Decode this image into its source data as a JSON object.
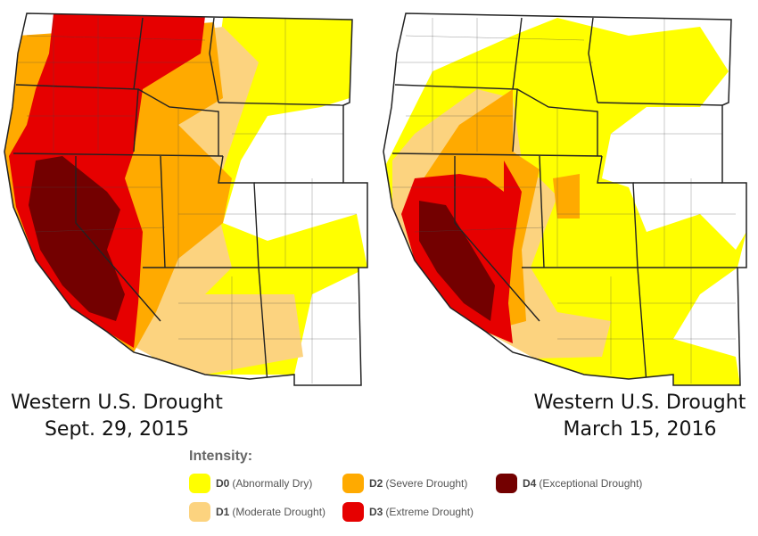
{
  "maps": [
    {
      "caption_line1": "Western U.S. Drought",
      "caption_line2": "Sept. 29, 2015"
    },
    {
      "caption_line1": "Western U.S. Drought",
      "caption_line2": "March 15, 2016"
    }
  ],
  "legend": {
    "title": "Intensity:",
    "items": [
      {
        "code": "D0",
        "label": "(Abnormally Dry)",
        "color": "#ffff00"
      },
      {
        "code": "D1",
        "label": "(Moderate Drought)",
        "color": "#fcd37f"
      },
      {
        "code": "D2",
        "label": "(Severe Drought)",
        "color": "#ffaa00"
      },
      {
        "code": "D3",
        "label": "(Extreme Drought)",
        "color": "#e60000"
      },
      {
        "code": "D4",
        "label": "(Exceptional Drought)",
        "color": "#730000"
      }
    ]
  }
}
